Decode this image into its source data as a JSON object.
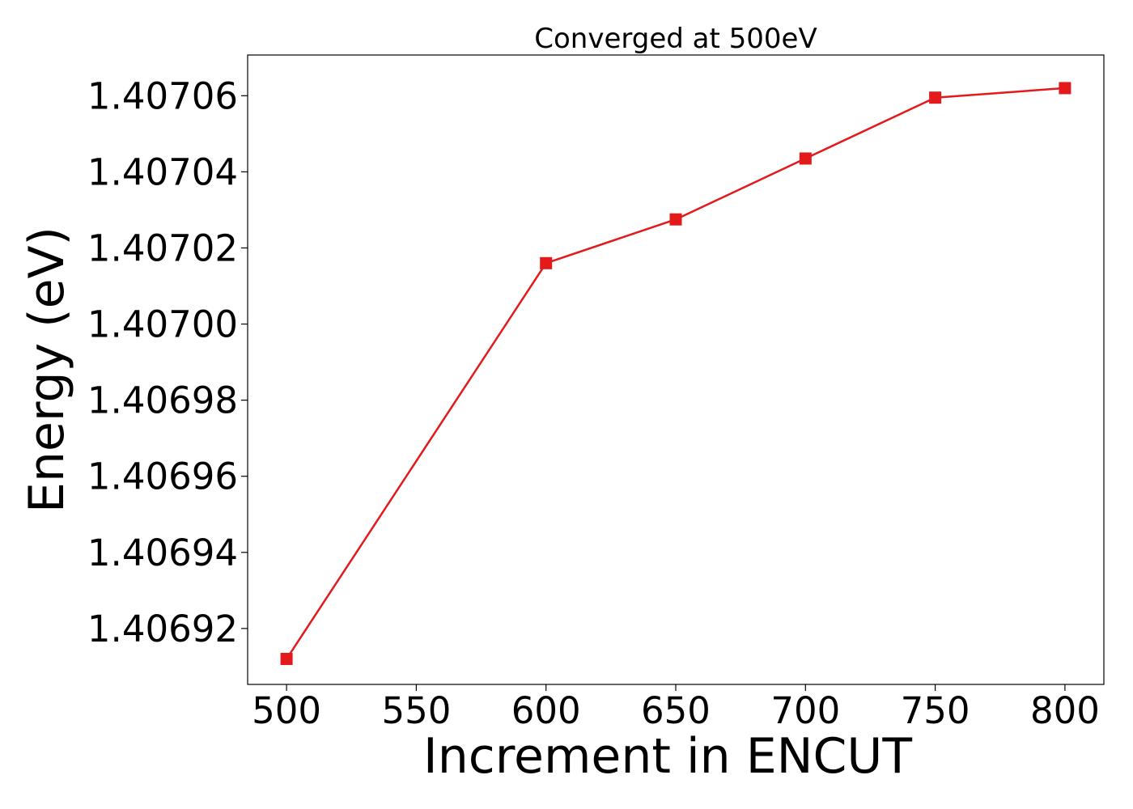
{
  "chart_data": {
    "type": "line",
    "title": "Converged at 500eV",
    "xlabel": "Increment in ENCUT",
    "ylabel": "Energy (eV)",
    "x": [
      500,
      600,
      650,
      700,
      750,
      800
    ],
    "series": [
      {
        "values": [
          1.406912,
          1.407016,
          1.4070275,
          1.4070435,
          1.4070595,
          1.407062
        ]
      }
    ],
    "xlim": [
      485,
      815
    ],
    "ylim": [
      1.4069053,
      1.4070707
    ],
    "xticks": [
      500,
      550,
      600,
      650,
      700,
      750,
      800
    ],
    "xtick_labels": [
      "500",
      "550",
      "600",
      "650",
      "700",
      "750",
      "800"
    ],
    "yticks": [
      1.40692,
      1.40694,
      1.40696,
      1.40698,
      1.407,
      1.40702,
      1.40704,
      1.40706
    ],
    "ytick_labels": [
      "1.40692",
      "1.40694",
      "1.40696",
      "1.40698",
      "1.40700",
      "1.40702",
      "1.40704",
      "1.40706"
    ],
    "grid": false,
    "legend": "none",
    "marker": "square",
    "line_color": "#e31a1c"
  }
}
